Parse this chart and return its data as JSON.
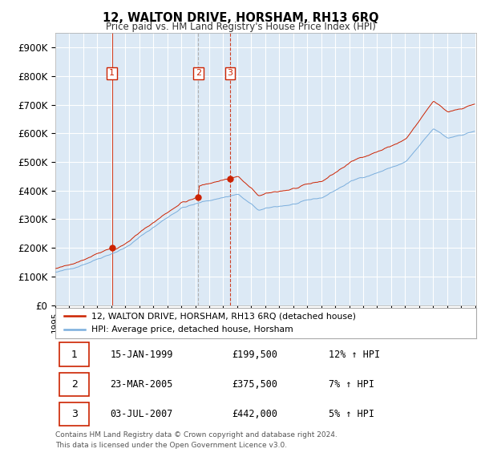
{
  "title": "12, WALTON DRIVE, HORSHAM, RH13 6RQ",
  "subtitle": "Price paid vs. HM Land Registry's House Price Index (HPI)",
  "legend_line1": "12, WALTON DRIVE, HORSHAM, RH13 6RQ (detached house)",
  "legend_line2": "HPI: Average price, detached house, Horsham",
  "transactions": [
    {
      "label": "1",
      "date": "15-JAN-1999",
      "price": "£199,500",
      "pct": "12% ↑ HPI",
      "year": 1999.04,
      "price_val": 199500
    },
    {
      "label": "2",
      "date": "23-MAR-2005",
      "price": "£375,500",
      "pct": "7% ↑ HPI",
      "year": 2005.22,
      "price_val": 375500
    },
    {
      "label": "3",
      "date": "03-JUL-2007",
      "price": "£442,000",
      "pct": "5% ↑ HPI",
      "year": 2007.5,
      "price_val": 442000
    }
  ],
  "footer_line1": "Contains HM Land Registry data © Crown copyright and database right 2024.",
  "footer_line2": "This data is licensed under the Open Government Licence v3.0.",
  "ylim": [
    0,
    950000
  ],
  "yticks": [
    0,
    100000,
    200000,
    300000,
    400000,
    500000,
    600000,
    700000,
    800000,
    900000
  ],
  "ytick_labels": [
    "£0",
    "£100K",
    "£200K",
    "£300K",
    "£400K",
    "£500K",
    "£600K",
    "£700K",
    "£800K",
    "£900K"
  ],
  "hpi_color": "#7aaedd",
  "price_color": "#cc2200",
  "vline_color_solid": "#cc2200",
  "vline_color_dashed": "#aaaaaa",
  "plot_bg_color": "#dce9f5",
  "background_color": "#ffffff",
  "grid_color": "#ffffff",
  "label_box_color": "#cc2200"
}
